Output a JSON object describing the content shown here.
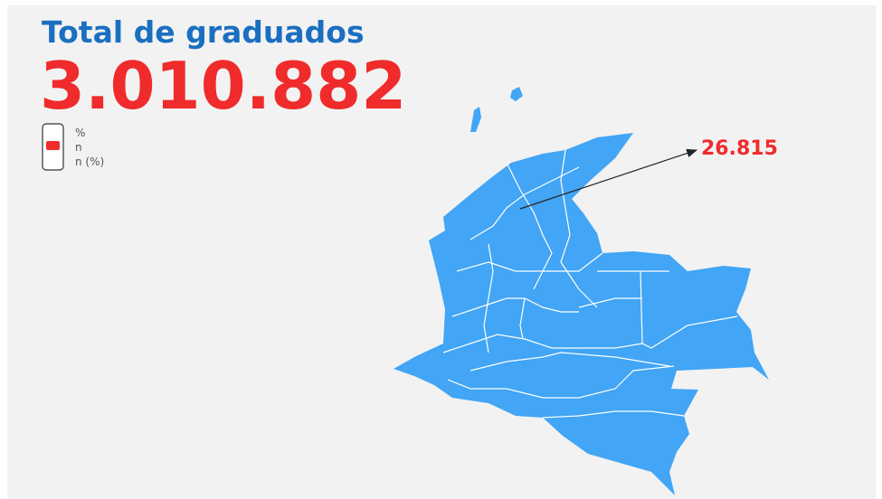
{
  "header": {
    "title": "Total de graduados",
    "total": "3.010.882"
  },
  "legend": {
    "items": [
      "%",
      "n",
      "n (%)"
    ]
  },
  "map": {
    "annotation": "26.815"
  }
}
